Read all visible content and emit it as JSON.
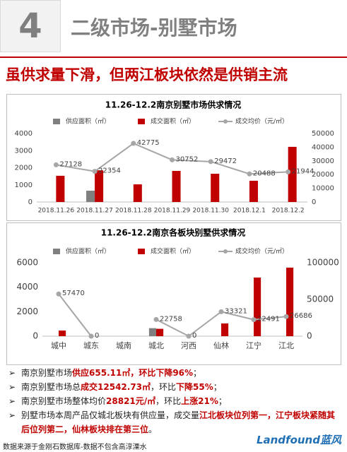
{
  "header": {
    "number": "4",
    "title": "二级市场-别墅市场",
    "subtitle": "虽供求量下滑，但两江板块依然是供销主流"
  },
  "chart_data": [
    {
      "type": "bar",
      "title": "11.26-12.2南京别墅市场供求情况",
      "categories": [
        "2018.11.26",
        "2018.11.27",
        "2018.11.28",
        "2018.11.29",
        "2018.11.30",
        "2018.12.1",
        "2018.12.2"
      ],
      "series": [
        {
          "name": "供应面积（㎡）",
          "color": "#7f7f7f",
          "values": [
            0,
            660,
            0,
            0,
            0,
            0,
            0
          ]
        },
        {
          "name": "成交面积（㎡）",
          "color": "#c00000",
          "values": [
            1530,
            1850,
            1030,
            1815,
            1650,
            1240,
            3220
          ]
        },
        {
          "name": "成交均价（元/㎡）",
          "color": "#a6a6a6",
          "type": "line",
          "axis": "y2",
          "values": [
            27128,
            22354,
            42775,
            30752,
            29472,
            20488,
            21944
          ]
        }
      ],
      "ylim": [
        0,
        4000
      ],
      "yticks": [
        0,
        1000,
        2000,
        3000,
        4000
      ],
      "y2lim": [
        0,
        50000
      ],
      "y2ticks": [
        0,
        10000,
        20000,
        30000,
        40000,
        50000
      ],
      "grid": false
    },
    {
      "type": "bar",
      "title": "11.26-12.2南京各板块别墅供求情况",
      "categories": [
        "城中",
        "城东",
        "城南",
        "城北",
        "河西",
        "仙林",
        "江宁",
        "江北"
      ],
      "series": [
        {
          "name": "供应面积（㎡）",
          "color": "#7f7f7f",
          "values": [
            0,
            0,
            0,
            655,
            0,
            0,
            0,
            0
          ]
        },
        {
          "name": "成交面积（㎡）",
          "color": "#c00000",
          "values": [
            460,
            0,
            0,
            600,
            0,
            1040,
            4790,
            5600
          ]
        },
        {
          "name": "成交均价（元/㎡）",
          "color": "#a6a6a6",
          "type": "line",
          "axis": "y2",
          "values": [
            57470,
            0,
            null,
            22758,
            0,
            33321,
            22491,
            26686
          ]
        }
      ],
      "ylim": [
        0,
        6000
      ],
      "yticks": [
        0,
        2000,
        4000,
        6000
      ],
      "y2lim": [
        0,
        100000
      ],
      "y2ticks": [
        0,
        50000,
        100000
      ],
      "grid": false
    }
  ],
  "bullets": [
    [
      {
        "text": "南京别墅市场"
      },
      {
        "text": "供应655.11㎡，环比下降96%",
        "red": true
      },
      {
        "text": "；"
      }
    ],
    [
      {
        "text": "南京别墅市场总"
      },
      {
        "text": "成交12542.73㎡",
        "red": true
      },
      {
        "text": "，环比"
      },
      {
        "text": "下降55%",
        "red": true
      },
      {
        "text": "；"
      }
    ],
    [
      {
        "text": "南京别墅市场整体均价"
      },
      {
        "text": "28821元/㎡",
        "red": true
      },
      {
        "text": "，环比"
      },
      {
        "text": "上涨21%",
        "red": true
      },
      {
        "text": "；"
      }
    ],
    [
      {
        "text": "别墅市场本周产品仅城北板块有供应量，成交量"
      },
      {
        "text": "江北板块位列第一，江宁板块紧随其后位列第二，仙林板块排在第三位",
        "red": true
      },
      {
        "text": "。"
      }
    ]
  ],
  "footer": {
    "source": "数据来源于金刚石数据库-数据不包含高淳溧水",
    "logo": "Landfound",
    "logo_cn": "蓝风"
  }
}
